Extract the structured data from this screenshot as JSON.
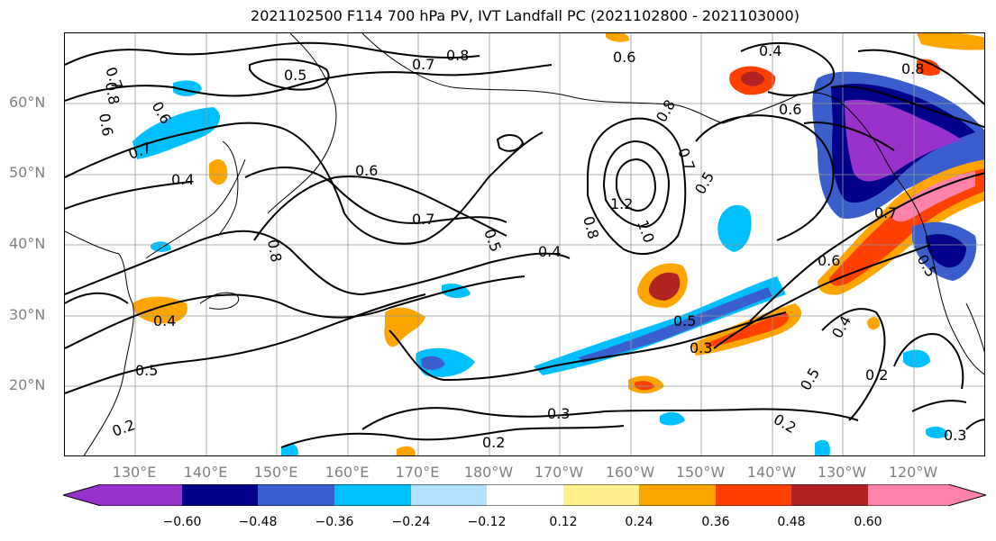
{
  "title": "2021102500 F114 700 hPa PV, IVT Landfall PC (2021102800 - 2021103000)",
  "lat_labels": [
    "60°N",
    "50°N",
    "40°N",
    "30°N",
    "20°N"
  ],
  "lon_labels": [
    "130°E",
    "140°E",
    "150°E",
    "160°E",
    "170°E",
    "180°W",
    "170°W",
    "160°W",
    "150°W",
    "140°W",
    "130°W",
    "120°W"
  ],
  "colorbar": {
    "ticks": [
      "−0.60",
      "−0.48",
      "−0.36",
      "−0.24",
      "−0.12",
      "0.12",
      "0.24",
      "0.36",
      "0.48",
      "0.60"
    ],
    "colors": [
      "#9932cc",
      "#00008b",
      "#3a5fcd",
      "#00bfff",
      "#b2e2ff",
      "#ffffff",
      "#fff08c",
      "#ffa500",
      "#ff4000",
      "#b22222",
      "#ff82ab"
    ]
  },
  "contour_labels": [
    "0.7",
    "0.8",
    "0.6",
    "0.5",
    "0.7",
    "0.8",
    "0.6",
    "0.4",
    "0.8",
    "0.6",
    "0.6",
    "0.7",
    "0.4",
    "0.6",
    "0.7",
    "0.5",
    "0.4",
    "0.8",
    "1.2",
    "1.0",
    "0.7",
    "0.5",
    "0.8",
    "0.8",
    "0.4",
    "0.5",
    "0.5",
    "0.3",
    "0.4",
    "0.2",
    "0.5",
    "0.3",
    "0.2",
    "0.2",
    "0.2",
    "0.3",
    "0.6",
    "0.7",
    "0.5"
  ]
}
